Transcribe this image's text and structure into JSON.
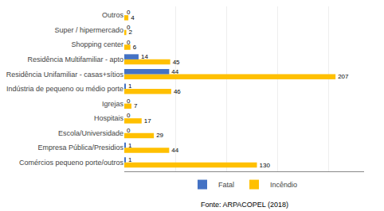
{
  "chart_data": {
    "type": "bar",
    "orientation": "horizontal",
    "categories": [
      "Comércios pequeno porte/outros",
      "Empresa Pública/Presidios",
      "Escola/Universidade",
      "Hospitais",
      "Igrejas",
      "Indústria de pequeno ou médio porte",
      "Residência Unifamiliar - casas+sítios",
      "Residência Multifamiliar - apto",
      "Shopping center",
      "Super / hipermercado",
      "Outros"
    ],
    "series": [
      {
        "name": "Fatal",
        "color": "#4472c4",
        "values": [
          1,
          1,
          0,
          0,
          0,
          1,
          44,
          14,
          0,
          0,
          0
        ]
      },
      {
        "name": "Incêndio",
        "color": "#ffc000",
        "values": [
          130,
          44,
          29,
          17,
          7,
          46,
          207,
          45,
          6,
          2,
          4
        ]
      }
    ],
    "xlim": [
      0,
      235
    ],
    "xticks": [
      0,
      50,
      100,
      150,
      200
    ],
    "grid": true,
    "legend": "bottom",
    "data_labels": true,
    "tick_labels": "y",
    "annotations": [
      "Fonte: ARPACOPEL (2018)"
    ]
  }
}
